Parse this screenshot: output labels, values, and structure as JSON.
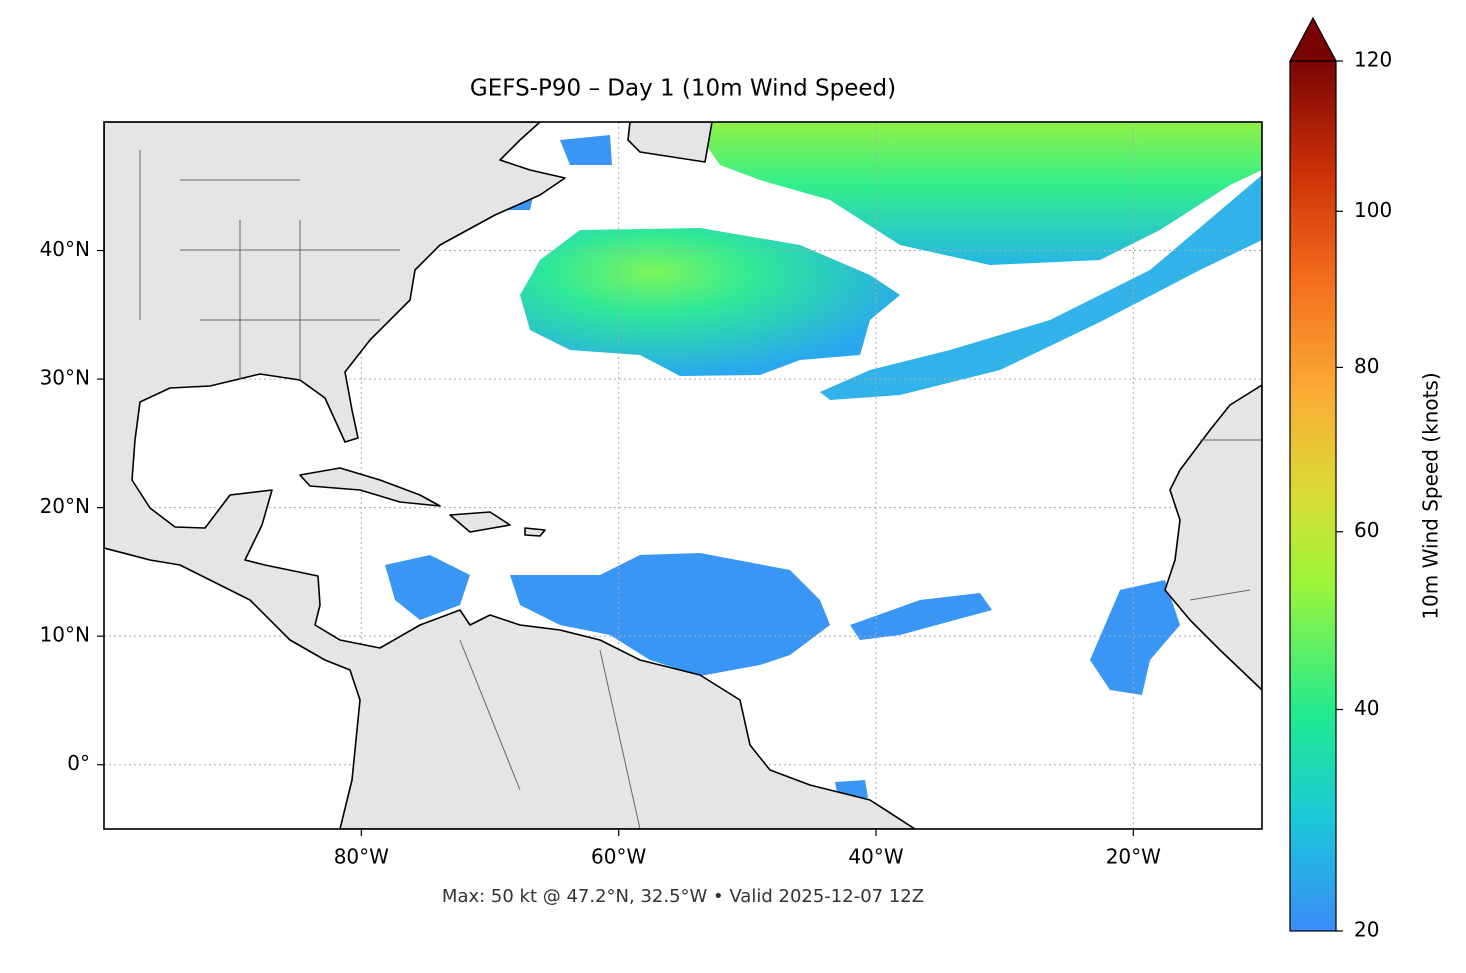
{
  "chart_data": {
    "type": "map",
    "title": "GEFS-P90 – Day 1 (10m Wind Speed)",
    "footnote": "Max: 50 kt @ 47.2°N, 32.5°W • Valid 2025-12-07 12Z",
    "xlim": [
      -100,
      -10
    ],
    "ylim": [
      -5,
      50
    ],
    "xticks": [
      {
        "value": -80,
        "label": "80°W"
      },
      {
        "value": -60,
        "label": "60°W"
      },
      {
        "value": -40,
        "label": "40°W"
      },
      {
        "value": -20,
        "label": "20°W"
      }
    ],
    "yticks": [
      {
        "value": 0,
        "label": "0°"
      },
      {
        "value": 10,
        "label": "10°N"
      },
      {
        "value": 20,
        "label": "20°N"
      },
      {
        "value": 30,
        "label": "30°N"
      },
      {
        "value": 40,
        "label": "40°N"
      }
    ],
    "grid": true,
    "colorbar": {
      "label": "10m Wind Speed (knots)",
      "lim": [
        20,
        120
      ],
      "ticks": [
        20,
        40,
        60,
        80,
        100,
        120
      ],
      "gamma": 0.85
    }
  }
}
